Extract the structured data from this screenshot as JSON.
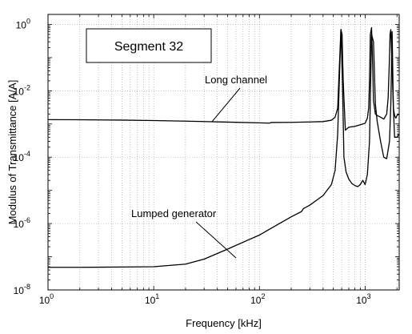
{
  "chart_data": {
    "type": "line",
    "title": "",
    "xlabel": "Frequency [kHz]",
    "ylabel": "Modulus of Transmittance [A/A]",
    "x_scale": "log",
    "y_scale": "log",
    "xlim": [
      1,
      2100
    ],
    "ylim": [
      1e-08,
      2
    ],
    "grid": true,
    "x_ticks": [
      {
        "value": 1,
        "base": "10",
        "exp": "0"
      },
      {
        "value": 10,
        "base": "10",
        "exp": "1"
      },
      {
        "value": 100,
        "base": "10",
        "exp": "2"
      },
      {
        "value": 1000,
        "base": "10",
        "exp": "3"
      }
    ],
    "y_ticks": [
      {
        "value": 1,
        "base": "10",
        "exp": "0"
      },
      {
        "value": 0.01,
        "base": "10",
        "exp": "-2"
      },
      {
        "value": 0.0001,
        "base": "10",
        "exp": "-4"
      },
      {
        "value": 1e-06,
        "base": "10",
        "exp": "-6"
      },
      {
        "value": 1e-08,
        "base": "10",
        "exp": "-8"
      }
    ],
    "annotations": [
      {
        "text": "Segment 32",
        "boxed": true
      },
      {
        "text": "Long channel",
        "points_to": [
          35,
          0.00115
        ]
      },
      {
        "text": "Lumped generator",
        "points_to": [
          60,
          2.5e-07
        ]
      }
    ],
    "series": [
      {
        "color": "#000000",
        "x": [
          1,
          2,
          5,
          10,
          20,
          50,
          100,
          125,
          128,
          200,
          300,
          400,
          480,
          520,
          550,
          570,
          590,
          605,
          620,
          650,
          700,
          800,
          900,
          1000,
          1050,
          1080,
          1100,
          1120,
          1150,
          1180,
          1200,
          1250,
          1300,
          1400,
          1500,
          1600,
          1650,
          1700,
          1720,
          1750,
          1800,
          1850,
          1900,
          1950,
          2000,
          2100
        ],
        "y": [
          0.00135,
          0.00134,
          0.00131,
          0.00127,
          0.00122,
          0.00114,
          0.00108,
          0.00106,
          0.00111,
          0.00112,
          0.00115,
          0.00118,
          0.0013,
          0.0016,
          0.003,
          0.05,
          0.7,
          0.5,
          0.02,
          0.00065,
          0.0008,
          0.00085,
          0.00095,
          0.00105,
          0.0015,
          0.003,
          0.02,
          0.5,
          0.8,
          0.05,
          0.005,
          0.002,
          0.0018,
          0.0016,
          0.0014,
          0.002,
          0.006,
          0.1,
          0.5,
          0.7,
          0.05,
          0.003,
          0.0018,
          0.0015,
          0.0018,
          0.002
        ]
      },
      {
        "color": "#000000",
        "x": [
          1,
          2,
          5,
          10,
          20,
          30,
          50,
          80,
          100,
          150,
          200,
          250,
          260,
          300,
          400,
          480,
          520,
          550,
          570,
          590,
          610,
          630,
          660,
          700,
          750,
          800,
          850,
          900,
          950,
          1000,
          1050,
          1100,
          1150,
          1200,
          1250,
          1300,
          1400,
          1500,
          1600,
          1700,
          1750,
          1800,
          1850,
          1900,
          2000,
          2100
        ],
        "y": [
          4.8e-08,
          4.8e-08,
          4.9e-08,
          5e-08,
          6e-08,
          8.5e-08,
          1.7e-07,
          3.3e-07,
          4.5e-07,
          9.5e-07,
          1.6e-06,
          2.3e-06,
          2.8e-06,
          3.6e-06,
          7e-06,
          1.5e-05,
          4e-05,
          0.0005,
          0.02,
          0.7,
          0.02,
          0.0001,
          3.6e-05,
          2.2e-05,
          1.6e-05,
          1.4e-05,
          1.3e-05,
          1.5e-05,
          2e-05,
          1.5e-05,
          3e-05,
          0.0003,
          0.5,
          0.3,
          0.004,
          0.0012,
          0.0003,
          0.0001,
          9e-05,
          0.0003,
          0.004,
          0.6,
          0.003,
          0.0004,
          0.0004,
          0.0005
        ]
      }
    ]
  }
}
